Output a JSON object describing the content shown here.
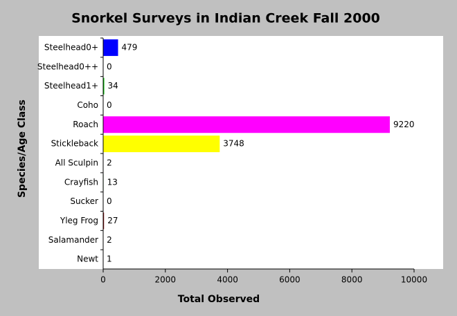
{
  "chart_data": {
    "type": "hbar",
    "title": "Snorkel Surveys in Indian Creek Fall 2000",
    "x_label": "Total Observed",
    "y_label": "Species/Age Class",
    "categories": [
      "Steelhead0+",
      "Steelhead0++",
      "Steelhead1+",
      "Coho",
      "Roach",
      "Stickleback",
      "All Sculpin",
      "Crayfish",
      "Sucker",
      "Yleg Frog",
      "Salamander",
      "Newt"
    ],
    "values": [
      479,
      0,
      34,
      0,
      9220,
      3748,
      2,
      13,
      0,
      27,
      2,
      1
    ],
    "colors": [
      "#0000ff",
      "#ff0000",
      "#00c000",
      "#ff8000",
      "#ff00ff",
      "#ffff00",
      "#00ffff",
      "#006400",
      "#808080",
      "#800000",
      "#000080",
      "#808000"
    ],
    "xlim": [
      0,
      10000
    ],
    "xticks": [
      0,
      2000,
      4000,
      6000,
      8000,
      10000
    ]
  }
}
